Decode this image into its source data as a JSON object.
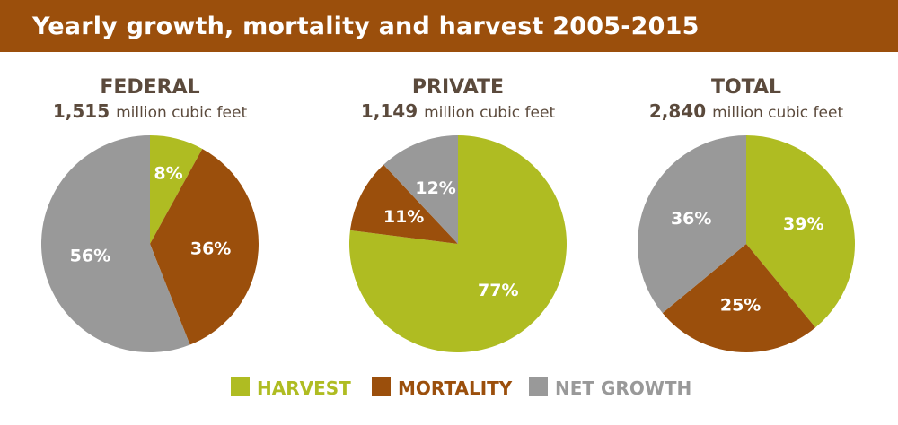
{
  "title": "Yearly growth, mortality and harvest 2005-2015",
  "colors": {
    "title_bar": "#9b4f0c",
    "harvest": "#afbc22",
    "mortality": "#9b4f0c",
    "net_growth": "#999999",
    "text": "#5b4a3c"
  },
  "legend": {
    "items": [
      {
        "label": "HARVEST",
        "color": "#afbc22"
      },
      {
        "label": "MORTALITY",
        "color": "#9b4f0c"
      },
      {
        "label": "NET GROWTH",
        "color": "#999999"
      }
    ]
  },
  "chart_data": [
    {
      "type": "pie",
      "title": "FEDERAL",
      "total": "1,515",
      "unit": "million cubic feet",
      "slices": [
        {
          "category": "HARVEST",
          "value": 8,
          "label": "8%"
        },
        {
          "category": "MORTALITY",
          "value": 36,
          "label": "36%"
        },
        {
          "category": "NET GROWTH",
          "value": 56,
          "label": "56%"
        }
      ]
    },
    {
      "type": "pie",
      "title": "PRIVATE",
      "total": "1,149",
      "unit": "million cubic feet",
      "slices": [
        {
          "category": "HARVEST",
          "value": 77,
          "label": "77%"
        },
        {
          "category": "MORTALITY",
          "value": 11,
          "label": "11%"
        },
        {
          "category": "NET GROWTH",
          "value": 12,
          "label": "12%"
        }
      ]
    },
    {
      "type": "pie",
      "title": "TOTAL",
      "total": "2,840",
      "unit": "million cubic feet",
      "slices": [
        {
          "category": "HARVEST",
          "value": 39,
          "label": "39%"
        },
        {
          "category": "MORTALITY",
          "value": 25,
          "label": "25%"
        },
        {
          "category": "NET GROWTH",
          "value": 36,
          "label": "36%"
        }
      ]
    }
  ]
}
